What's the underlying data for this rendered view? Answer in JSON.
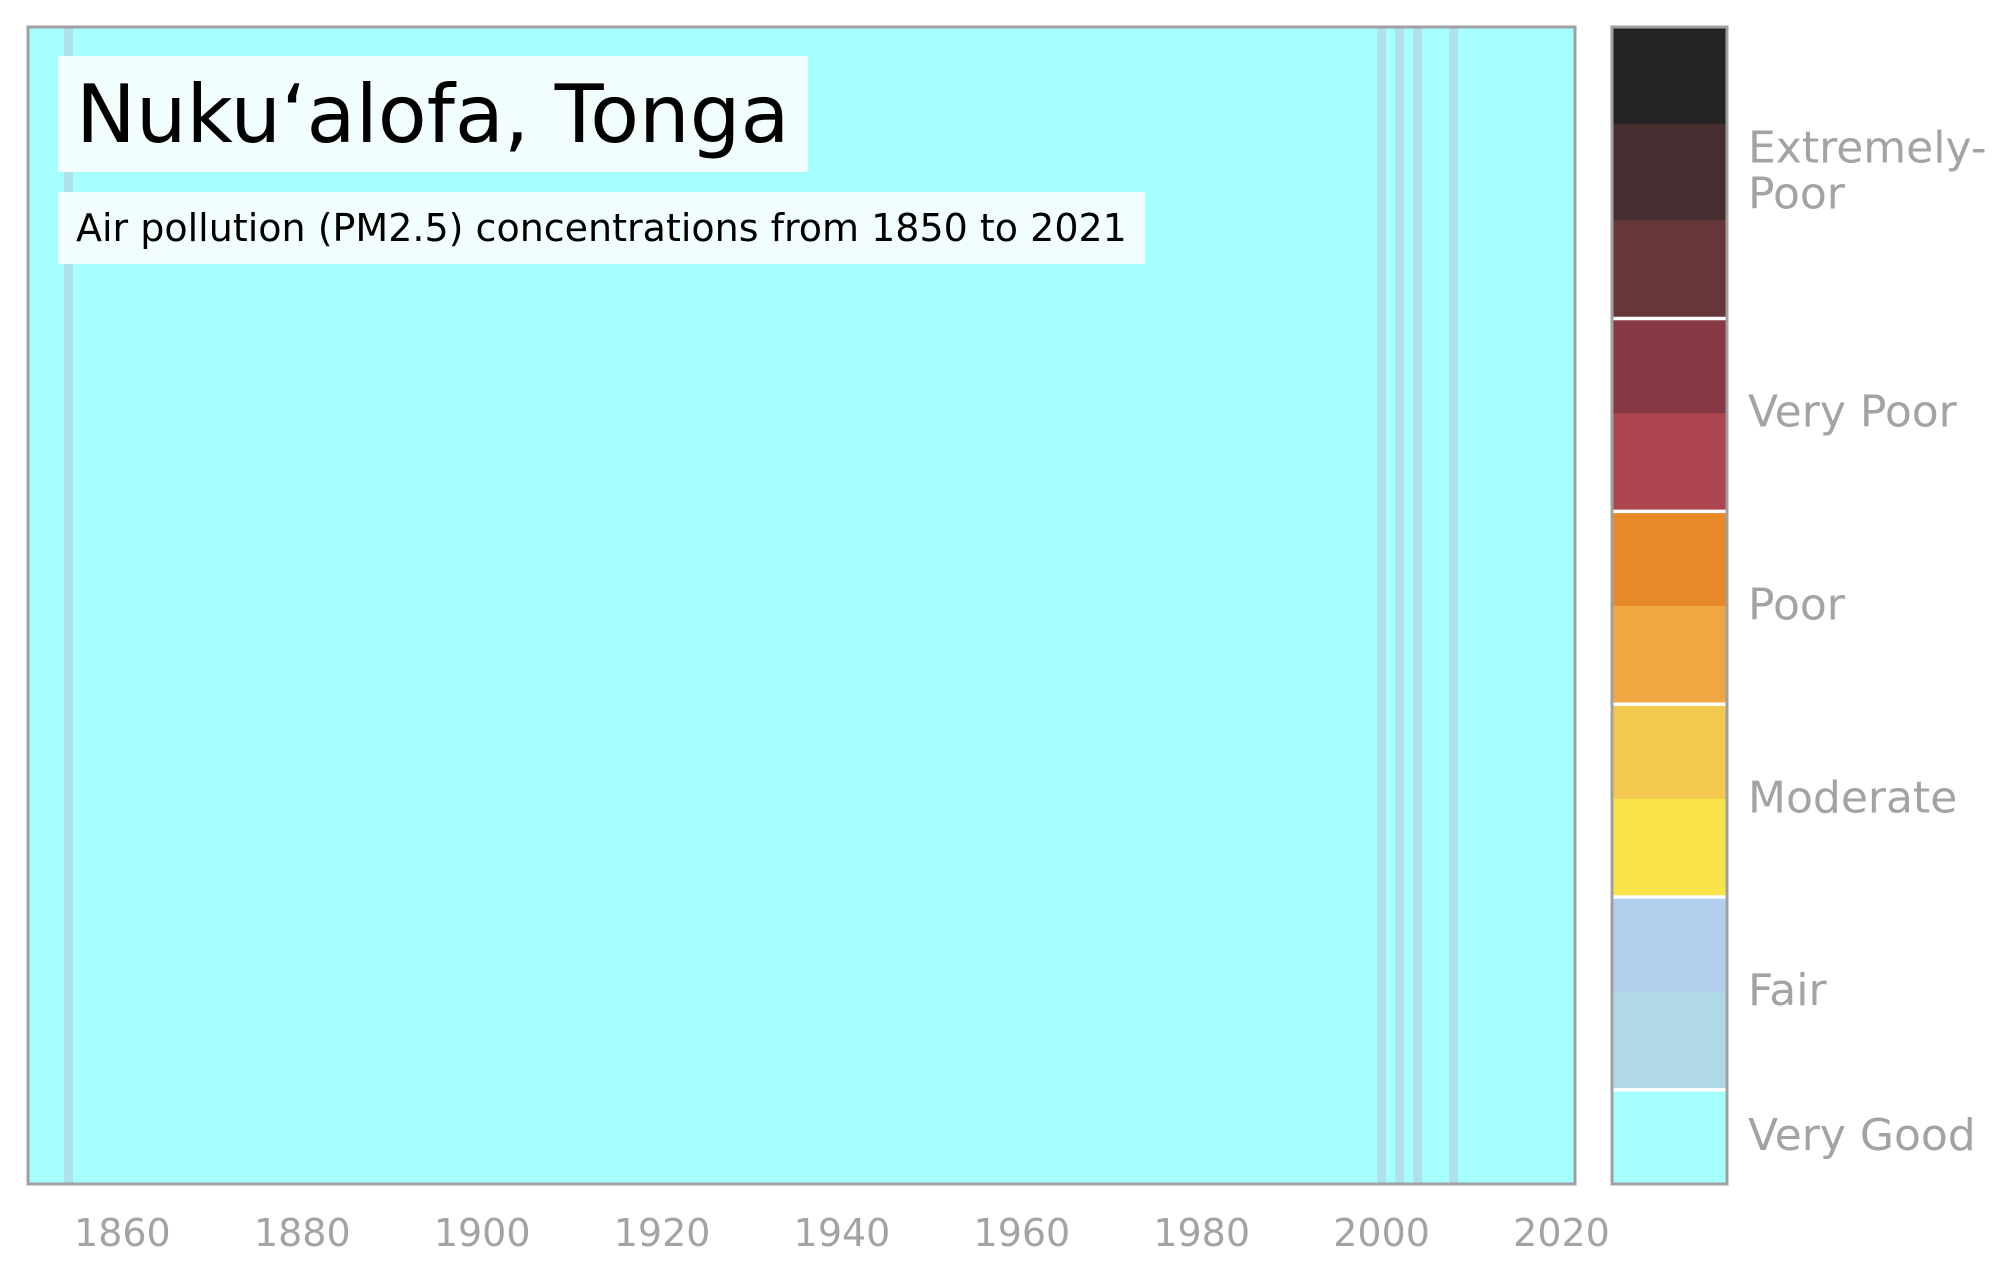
{
  "chart_data": {
    "type": "heatmap",
    "title": "Nukuʻalofa, Tonga",
    "subtitle": "Air pollution (PM2.5) concentrations from 1850 to 2021",
    "x_range": [
      1850,
      2021
    ],
    "x_ticks": [
      "1860",
      "1880",
      "1900",
      "1920",
      "1940",
      "1960",
      "1980",
      "2000",
      "2020"
    ],
    "default_category": "Very Good",
    "exceptions": [
      {
        "year": 1854,
        "category": "Fair"
      },
      {
        "year": 2000,
        "category": "Fair"
      },
      {
        "year": 2002,
        "category": "Fair"
      },
      {
        "year": 2004,
        "category": "Fair"
      },
      {
        "year": 2008,
        "category": "Fair"
      }
    ],
    "legend": {
      "placement": "right",
      "categories": [
        {
          "label": "Very Good",
          "colors": [
            "#a6ffff"
          ]
        },
        {
          "label": "Fair",
          "colors": [
            "#b0d9e8",
            "#b3cfee"
          ]
        },
        {
          "label": "Moderate",
          "colors": [
            "#f8e34a",
            "#f2c84e"
          ]
        },
        {
          "label": "Poor",
          "colors": [
            "#f0a742",
            "#e88928"
          ]
        },
        {
          "label": "Very Poor",
          "colors": [
            "#ad4551",
            "#873843"
          ]
        },
        {
          "label": "Extremely-Poor",
          "colors": [
            "#67363a",
            "#462d2f",
            "#232323"
          ]
        }
      ]
    },
    "colors": {
      "very_good": "#a6ffff",
      "fair_stripe": "#b0e0ea",
      "frame": "#a0a0a0",
      "label_gray": "#a3a3a3"
    }
  }
}
